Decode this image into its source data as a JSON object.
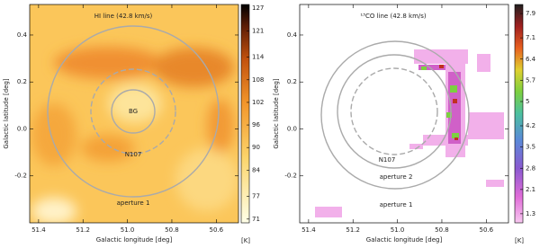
{
  "chart_data": [
    {
      "type": "image",
      "title": "HI line (42.8 km/s)",
      "xlabel": "Galactic longitude [deg]",
      "ylabel": "Galactic latitude [deg]",
      "xlim": [
        51.44,
        50.5
      ],
      "xticks": [
        51.4,
        51.2,
        {
          "value": 51,
          "label": "51.0"
        },
        50.8,
        50.6
      ],
      "ylim": [
        -0.4,
        0.53
      ],
      "yticks": [
        -0.2,
        {
          "value": 0,
          "label": "0.0"
        },
        0.2,
        0.4
      ],
      "colorbar": {
        "label": "[K]",
        "lim": [
          70,
          128
        ],
        "ticks": [
          71,
          77,
          84,
          90,
          96,
          102,
          108,
          114,
          121,
          127
        ]
      },
      "annotations": [
        "BG",
        "N107",
        "aperture 1"
      ]
    },
    {
      "type": "image",
      "title": "¹³CO line (42.8 km/s)",
      "xlabel": "Galactic longitude [deg]",
      "ylabel": "Galactic latitude [deg]",
      "xlim": [
        51.44,
        50.5
      ],
      "xticks": [
        51.4,
        51.2,
        {
          "value": 51,
          "label": "51.0"
        },
        50.8,
        50.6
      ],
      "ylim": [
        -0.4,
        0.53
      ],
      "yticks": [
        -0.2,
        {
          "value": 0,
          "label": "0.0"
        },
        0.2,
        0.4
      ],
      "colorbar": {
        "label": "[K]",
        "lim": [
          1,
          8.2
        ],
        "ticks": [
          1.3,
          2.1,
          2.8,
          3.5,
          4.2,
          5,
          5.7,
          6.4,
          7.1,
          7.9
        ]
      },
      "annotations": [
        "N107",
        "aperture 2",
        "aperture 1"
      ]
    }
  ]
}
